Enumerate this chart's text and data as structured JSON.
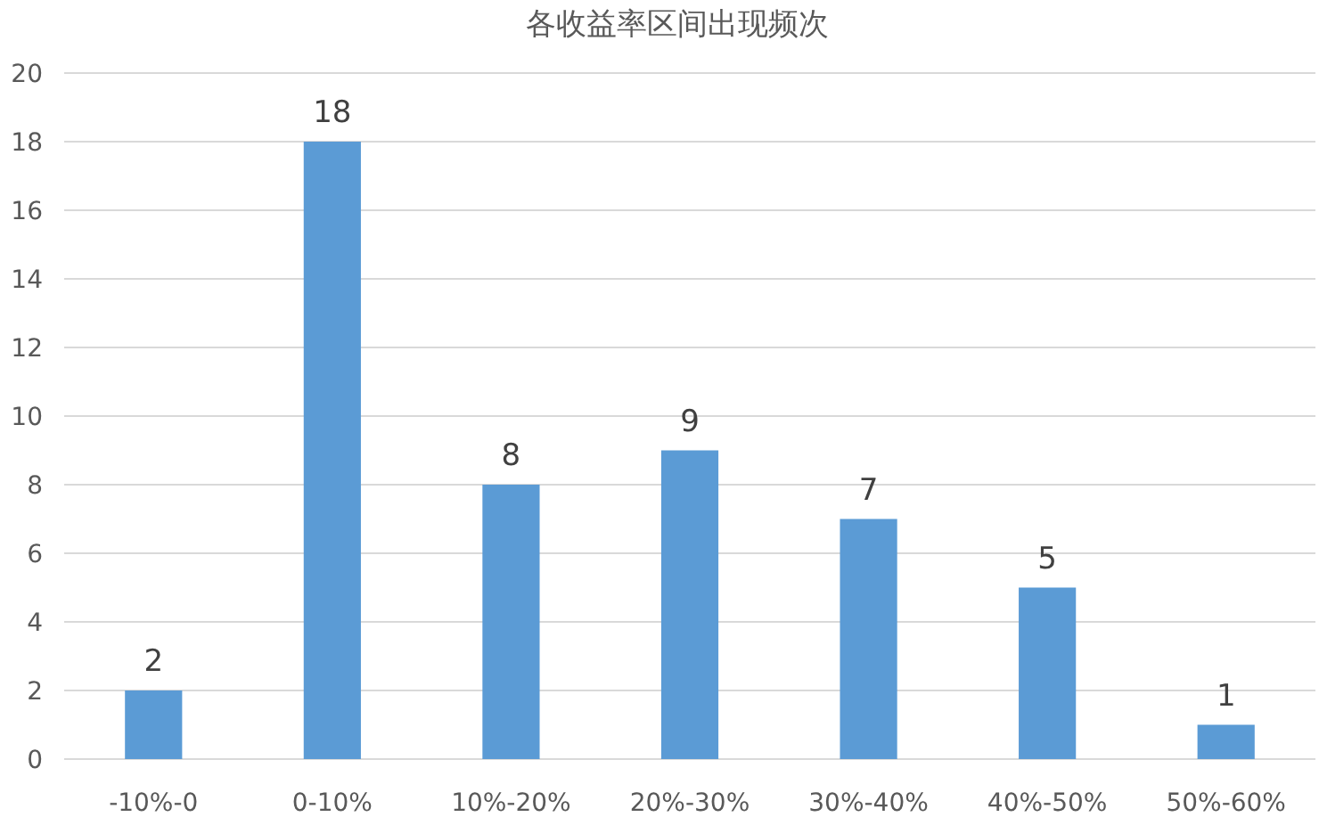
{
  "chart_data": {
    "type": "bar",
    "title": "各收益率区间出现频次",
    "categories": [
      "-10%-0",
      "0-10%",
      "10%-20%",
      "20%-30%",
      "30%-40%",
      "40%-50%",
      "50%-60%"
    ],
    "values": [
      2,
      18,
      8,
      9,
      7,
      5,
      1
    ],
    "color": "#5b9bd5",
    "ylim": [
      0,
      20
    ],
    "yticks": [
      0,
      2,
      4,
      6,
      8,
      10,
      12,
      14,
      16,
      18,
      20
    ],
    "grid": "y",
    "data_labels": true
  }
}
